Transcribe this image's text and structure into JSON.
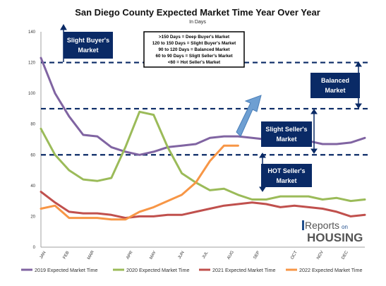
{
  "chart_data": {
    "type": "line",
    "title": "San Diego County Expected Market Time Year Over Year",
    "subtitle": "In Days",
    "categories": [
      "JAN",
      "FEB",
      "MAR",
      "APR",
      "MAY",
      "JUN",
      "JUL",
      "AUG",
      "SEP",
      "OCT",
      "NOV",
      "DEC"
    ],
    "ylim": [
      0,
      140
    ],
    "yticks": [
      0,
      20,
      40,
      60,
      80,
      100,
      120,
      140
    ],
    "grid": false,
    "legend_position": "bottom",
    "series": [
      {
        "name": "2019 Expected Market Time",
        "color": "#8064a2",
        "x": [
          1,
          1.5,
          2,
          2.5,
          3,
          3.5,
          4,
          4.5,
          5,
          5.5,
          6,
          6.5,
          7,
          7.5,
          8,
          8.5,
          9,
          9.5,
          10,
          10.5,
          11,
          11.5,
          12,
          12.5
        ],
        "values": [
          123,
          100,
          85,
          73,
          72,
          65,
          62,
          60,
          62,
          65,
          66,
          67,
          71,
          72,
          72,
          71,
          70,
          70,
          69,
          69,
          67,
          67,
          68,
          71
        ]
      },
      {
        "name": "2020 Expected Market Time",
        "color": "#9bbb59",
        "x": [
          1,
          1.5,
          2,
          2.5,
          3,
          3.5,
          4,
          4.5,
          5,
          5.5,
          6,
          6.5,
          7,
          7.5,
          8,
          8.5,
          9,
          9.5,
          10,
          10.5,
          11,
          11.5,
          12,
          12.5
        ],
        "values": [
          77,
          60,
          50,
          44,
          43,
          45,
          65,
          88,
          86,
          65,
          48,
          42,
          37,
          38,
          34,
          31,
          31,
          33,
          33,
          33,
          31,
          32,
          30,
          31
        ]
      },
      {
        "name": "2021 Expected Market Time",
        "color": "#c0504d",
        "x": [
          1,
          1.5,
          2,
          2.5,
          3,
          3.5,
          4,
          4.5,
          5,
          5.5,
          6,
          6.5,
          7,
          7.5,
          8,
          8.5,
          9,
          9.5,
          10,
          10.5,
          11,
          11.5,
          12,
          12.5
        ],
        "values": [
          36,
          29,
          23,
          22,
          22,
          21,
          19,
          20,
          20,
          21,
          21,
          23,
          25,
          27,
          28,
          29,
          28,
          26,
          27,
          26,
          25,
          23,
          20,
          21
        ]
      },
      {
        "name": "2022 Expected Market Time",
        "color": "#f79646",
        "x": [
          1,
          1.5,
          2,
          2.5,
          3,
          3.5,
          4,
          4.5,
          5,
          5.5,
          6,
          6.5,
          7,
          7.5,
          8
        ],
        "values": [
          25,
          27,
          19,
          19,
          19,
          18,
          18,
          23,
          26,
          30,
          34,
          42,
          56,
          66,
          66
        ]
      }
    ],
    "thresholds": [
      {
        "value": 120,
        "color": "#0a2a66"
      },
      {
        "value": 90,
        "color": "#0a2a66"
      },
      {
        "value": 60,
        "color": "#0a2a66"
      }
    ],
    "annotations": {
      "legend_box": [
        ">150 Days   = Deep Buyer's Market",
        "120 to 150 Days  = Slight Buyer's Market",
        "90 to 120 Days  = Balanced Market",
        "60 to 90 Days  = Sligtt Seller's Market",
        "<60   = Hot Seller's Market"
      ],
      "zones": [
        {
          "label": "Slight Buyer's Market"
        },
        {
          "label": "Balanced Market"
        },
        {
          "label": "Slight Seller's Market"
        },
        {
          "label": "HOT Seller's Market"
        }
      ]
    },
    "logo": {
      "line1": "Reports",
      "on": "on",
      "line2": "HOUSING"
    },
    "colors": {
      "zone_box": "#0a2a66",
      "arrow": "#6e9fd2",
      "axis": "#a0a0a0"
    }
  }
}
